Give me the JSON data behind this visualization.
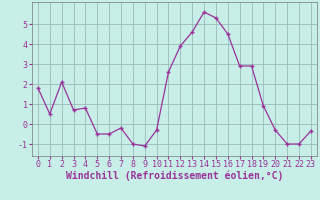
{
  "x": [
    0,
    1,
    2,
    3,
    4,
    5,
    6,
    7,
    8,
    9,
    10,
    11,
    12,
    13,
    14,
    15,
    16,
    17,
    18,
    19,
    20,
    21,
    22,
    23
  ],
  "y": [
    1.8,
    0.5,
    2.1,
    0.7,
    0.8,
    -0.5,
    -0.5,
    -0.2,
    -1.0,
    -1.1,
    -0.3,
    2.6,
    3.9,
    4.6,
    5.6,
    5.3,
    4.5,
    2.9,
    2.9,
    0.9,
    -0.3,
    -1.0,
    -1.0,
    -0.35
  ],
  "line_color": "#993399",
  "marker": "+",
  "marker_size": 3,
  "marker_lw": 1.0,
  "xlabel": "Windchill (Refroidissement éolien,°C)",
  "yticks": [
    -1,
    0,
    1,
    2,
    3,
    4,
    5
  ],
  "ylim": [
    -1.6,
    6.1
  ],
  "xlim": [
    -0.5,
    23.5
  ],
  "bg_color": "#c8eee8",
  "grid_color": "#99bbbb",
  "xlabel_fontsize": 7.0,
  "tick_fontsize": 6.0,
  "linewidth": 0.9,
  "spine_color": "#777777"
}
